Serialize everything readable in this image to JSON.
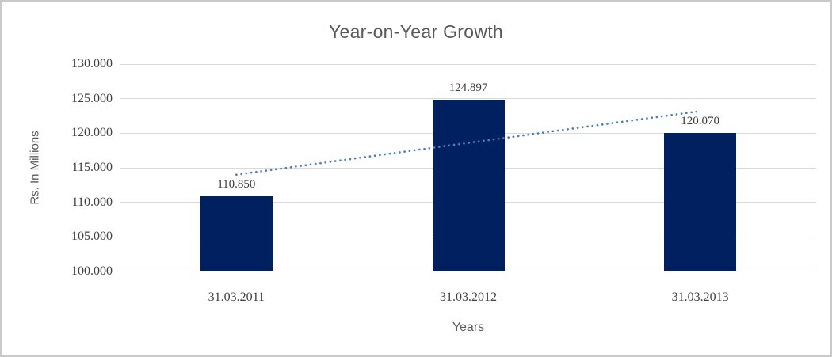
{
  "chart_data": {
    "type": "bar",
    "title": "Year-on-Year Growth",
    "xlabel": "Years",
    "ylabel": "Rs. In Millions",
    "categories": [
      "31.03.2011",
      "31.03.2012",
      "31.03.2013"
    ],
    "values": [
      110.85,
      124.897,
      120.07
    ],
    "data_labels": [
      "110.850",
      "124.897",
      "120.070"
    ],
    "ylim": [
      100,
      130
    ],
    "ytick_labels": [
      "100.000",
      "105.000",
      "110.000",
      "115.000",
      "120.000",
      "125.000",
      "130.000"
    ],
    "grid": true,
    "legend": "none",
    "trendline": {
      "type": "linear",
      "style": "dotted",
      "start_value": 114.0,
      "end_value": 123.2,
      "color": "#4a7ebd"
    },
    "bar_color": "#002060",
    "colors": {
      "title": "#595959",
      "tick_label": "#404040",
      "gridline": "#d9d9d9",
      "background": "#ffffff",
      "border": "#c9c9c9"
    }
  }
}
